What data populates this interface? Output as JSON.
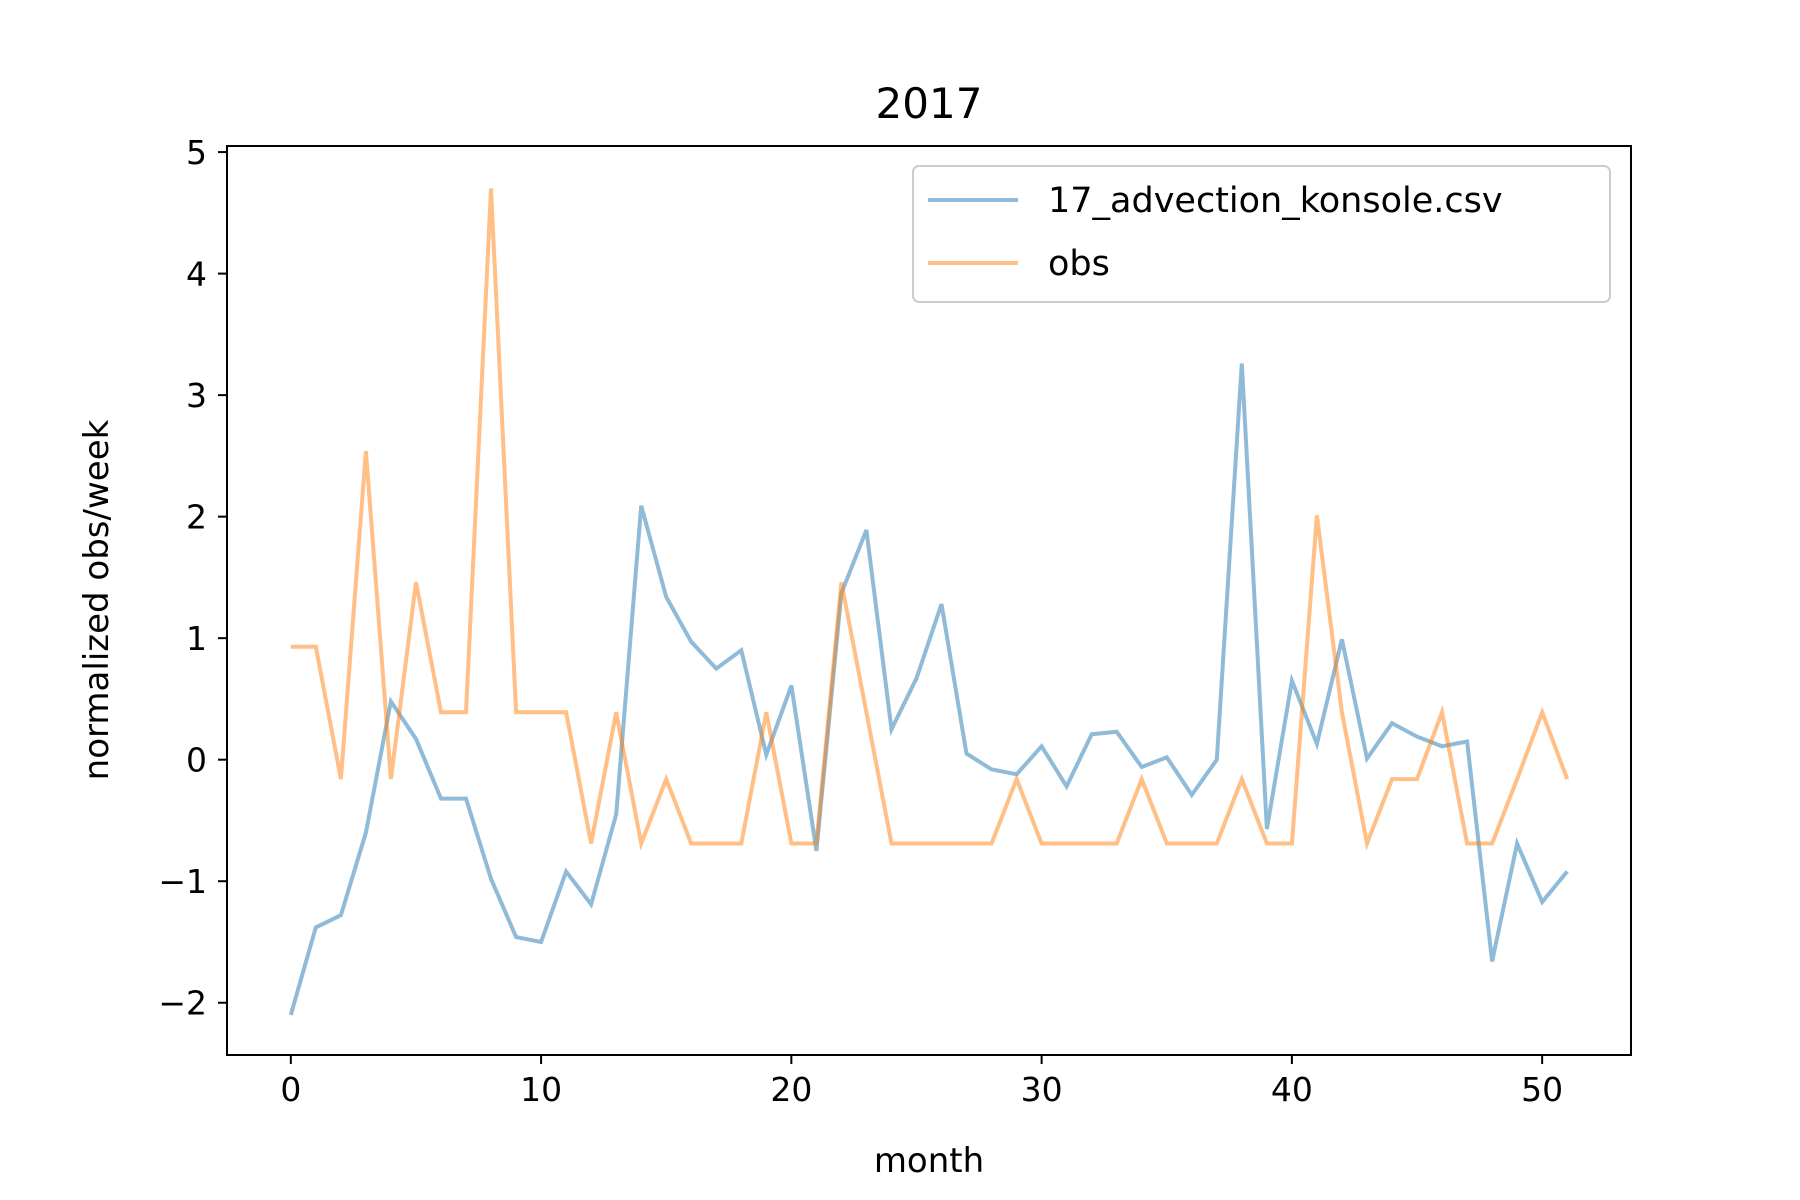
{
  "chart_data": {
    "type": "line",
    "title": "2017",
    "xlabel": "month",
    "ylabel": "normalized obs/week",
    "xlim": [
      -2.55,
      53.55
    ],
    "ylim": [
      -2.43,
      5.05
    ],
    "xticks": [
      0,
      10,
      20,
      30,
      40,
      50
    ],
    "yticks": [
      -2,
      -1,
      0,
      1,
      2,
      3,
      4,
      5
    ],
    "xtick_labels": [
      "0",
      "10",
      "20",
      "30",
      "40",
      "50"
    ],
    "ytick_labels": [
      "−2",
      "−1",
      "0",
      "1",
      "2",
      "3",
      "4",
      "5"
    ],
    "grid": false,
    "legend_position": "top-right",
    "series": [
      {
        "name": "17_advection_konsole.csv",
        "color": "#1f77b4",
        "alpha": 0.5,
        "x": [
          0,
          1,
          2,
          3,
          4,
          5,
          6,
          7,
          8,
          9,
          10,
          11,
          12,
          13,
          14,
          15,
          16,
          17,
          18,
          19,
          20,
          21,
          22,
          23,
          24,
          25,
          26,
          27,
          28,
          29,
          30,
          31,
          32,
          33,
          34,
          35,
          36,
          37,
          38,
          39,
          40,
          41,
          42,
          43,
          44,
          45,
          46,
          47,
          48,
          49,
          50,
          51
        ],
        "values": [
          -2.1,
          -1.38,
          -1.28,
          -0.6,
          0.48,
          0.17,
          -0.32,
          -0.32,
          -0.98,
          -1.46,
          -1.5,
          -0.92,
          -1.19,
          -0.45,
          2.09,
          1.34,
          0.97,
          0.75,
          0.9,
          0.04,
          0.61,
          -0.75,
          1.37,
          1.89,
          0.25,
          0.67,
          1.28,
          0.05,
          -0.08,
          -0.12,
          0.11,
          -0.22,
          0.21,
          0.23,
          -0.06,
          0.02,
          -0.29,
          0.0,
          3.26,
          -0.57,
          0.65,
          0.13,
          0.99,
          0.01,
          0.3,
          0.19,
          0.11,
          0.15,
          -1.66,
          -0.69,
          -1.17,
          -0.92
        ]
      },
      {
        "name": "obs",
        "color": "#ff7f0e",
        "alpha": 0.5,
        "x": [
          0,
          1,
          2,
          3,
          4,
          5,
          6,
          7,
          8,
          9,
          10,
          11,
          12,
          13,
          14,
          15,
          16,
          17,
          18,
          19,
          20,
          21,
          22,
          23,
          24,
          25,
          26,
          27,
          28,
          29,
          30,
          31,
          32,
          33,
          34,
          35,
          36,
          37,
          38,
          39,
          40,
          41,
          42,
          43,
          44,
          45,
          46,
          47,
          48,
          49,
          50,
          51
        ],
        "values": [
          0.93,
          0.93,
          -0.16,
          2.54,
          -0.16,
          1.46,
          0.39,
          0.39,
          4.7,
          0.39,
          0.39,
          0.39,
          -0.69,
          0.39,
          -0.69,
          -0.16,
          -0.69,
          -0.69,
          -0.69,
          0.39,
          -0.69,
          -0.69,
          1.46,
          0.39,
          -0.69,
          -0.69,
          -0.69,
          -0.69,
          -0.69,
          -0.16,
          -0.69,
          -0.69,
          -0.69,
          -0.69,
          -0.16,
          -0.69,
          -0.69,
          -0.69,
          -0.16,
          -0.69,
          -0.69,
          2.01,
          0.39,
          -0.69,
          -0.16,
          -0.16,
          0.39,
          -0.69,
          -0.69,
          -0.16,
          0.39,
          -0.16
        ]
      }
    ]
  }
}
